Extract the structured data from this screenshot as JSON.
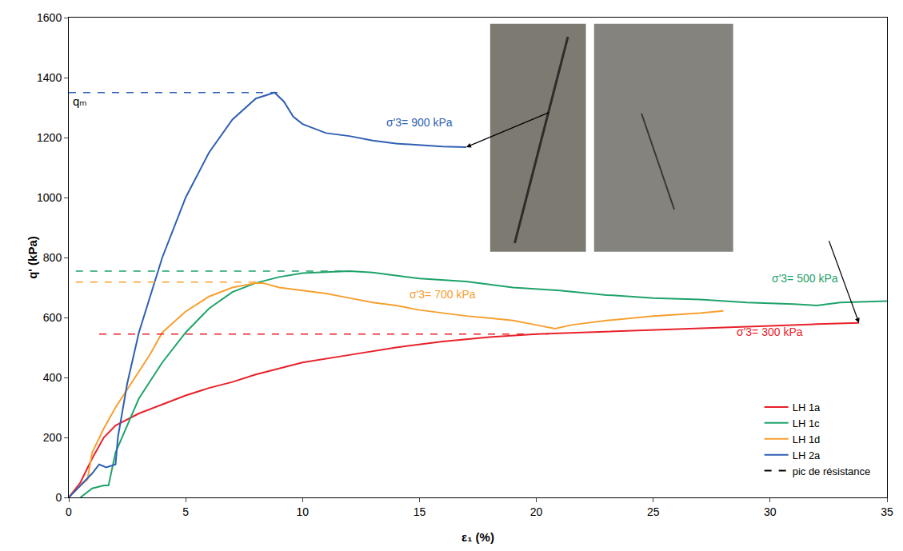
{
  "chart_data": {
    "type": "line",
    "x_label": "ε₁ (%)",
    "y_label": "q' (kPa)",
    "xlim": [
      0,
      35
    ],
    "xticks": [
      0,
      5,
      10,
      15,
      20,
      25,
      30,
      35
    ],
    "ylim": [
      0,
      1600
    ],
    "yticks": [
      0,
      200,
      400,
      600,
      800,
      1000,
      1200,
      1400,
      1600
    ],
    "grid": false,
    "legend": "bottom right",
    "peak_legend": "pic de résistance",
    "annotations": [
      {
        "text": "qₘ",
        "x": 0.1,
        "y": 1350
      }
    ],
    "series": [
      {
        "name": "LH 1a",
        "color": "#e8212a",
        "label": "σ'3= 300 kPa",
        "label_x": 30,
        "label_y": 525,
        "peak": 545,
        "peak_x": [
          1.3,
          20.5
        ],
        "x": [
          0,
          0.5,
          1,
          1.5,
          2,
          3,
          4,
          5,
          6,
          7,
          8,
          9,
          10,
          12,
          14,
          16,
          18,
          20,
          22,
          24,
          26,
          28,
          30,
          32,
          33.8
        ],
        "values": [
          0,
          50,
          130,
          200,
          240,
          280,
          310,
          340,
          365,
          385,
          410,
          430,
          450,
          475,
          500,
          520,
          535,
          545,
          550,
          555,
          560,
          565,
          572,
          578,
          582
        ]
      },
      {
        "name": "LH 1c",
        "color": "#1fa36b",
        "label": "σ'3= 500 kPa",
        "label_x": 31.5,
        "label_y": 705,
        "peak": 755,
        "peak_x": [
          0.3,
          12
        ],
        "x": [
          0.5,
          1,
          1.5,
          1.7,
          2,
          3,
          4,
          5,
          6,
          7,
          8,
          9,
          10,
          11,
          12,
          13,
          14,
          15,
          17,
          19,
          21,
          23,
          25,
          27,
          29,
          31,
          32,
          33,
          35
        ],
        "values": [
          0,
          30,
          40,
          40,
          150,
          330,
          450,
          550,
          630,
          685,
          715,
          735,
          748,
          752,
          755,
          750,
          740,
          730,
          720,
          700,
          690,
          675,
          665,
          660,
          650,
          645,
          640,
          650,
          655
        ]
      },
      {
        "name": "LH 1d",
        "color": "#f7a030",
        "label": "σ'3= 700 kPa",
        "label_x": 16,
        "label_y": 650,
        "peak": 718,
        "peak_x": [
          0.3,
          8.3
        ],
        "x": [
          0,
          0.5,
          0.8,
          1,
          1.5,
          2,
          3,
          3.5,
          4,
          5,
          6,
          7,
          8,
          8.3,
          9,
          10,
          11,
          12,
          13,
          14,
          15,
          16,
          17,
          18,
          19,
          20,
          20.8,
          21.5,
          23,
          25,
          27,
          28
        ],
        "values": [
          0,
          40,
          60,
          150,
          230,
          300,
          420,
          480,
          550,
          620,
          670,
          700,
          715,
          715,
          700,
          690,
          680,
          665,
          650,
          640,
          625,
          615,
          605,
          598,
          590,
          575,
          563,
          575,
          590,
          605,
          615,
          622
        ]
      },
      {
        "name": "LH 2a",
        "color": "#2f5fb3",
        "label": "σ'3= 900 kPa",
        "label_x": 15,
        "label_y": 1225,
        "peak": 1350,
        "peak_x": [
          0,
          9
        ],
        "x": [
          0,
          0.5,
          1,
          1.3,
          1.6,
          2,
          2.1,
          2.5,
          3,
          4,
          5,
          6,
          7,
          8,
          8.8,
          9.2,
          9.6,
          10,
          11,
          12,
          13,
          14,
          15,
          16,
          17
        ],
        "values": [
          0,
          40,
          80,
          110,
          100,
          110,
          200,
          380,
          550,
          800,
          1000,
          1150,
          1260,
          1330,
          1350,
          1320,
          1270,
          1245,
          1215,
          1205,
          1190,
          1180,
          1175,
          1170,
          1168
        ]
      }
    ]
  }
}
